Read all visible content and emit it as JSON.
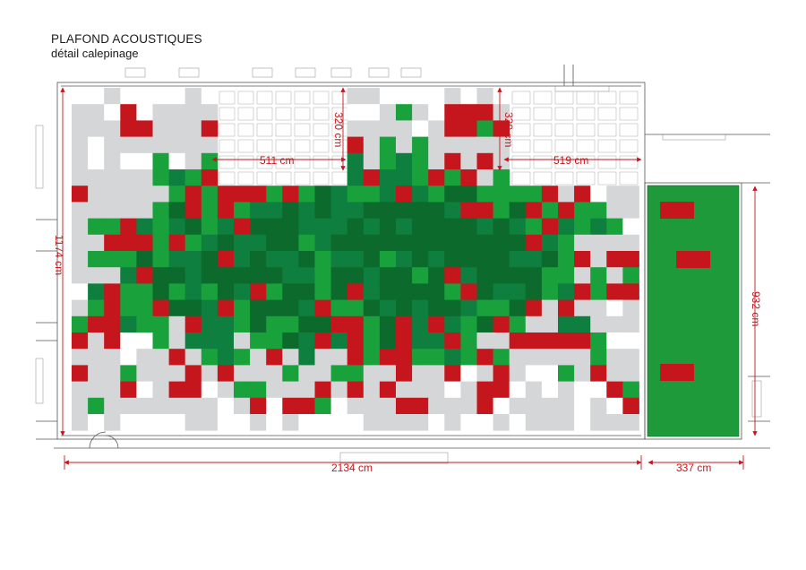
{
  "title": "PLAFOND ACOUSTIQUES",
  "subtitle": "détail calepinage",
  "colors": {
    "red": "#c4161c",
    "dark_green": "#0b6a2c",
    "mid_green": "#0e7f3f",
    "light_green": "#19a13c",
    "grey": "#d4d6d8",
    "white": "#ffffff",
    "side_green": "#1f9a3b",
    "dimension": "#c4161c"
  },
  "dimensions": {
    "total_length": "2134 cm",
    "side_length": "337 cm",
    "left_height": "1174 cm",
    "right_height": "932 cm",
    "patio_left_width": "511 cm",
    "patio_left_depth": "320 cm",
    "patio_right_width": "519 cm",
    "patio_right_depth": "320 cm"
  }
}
